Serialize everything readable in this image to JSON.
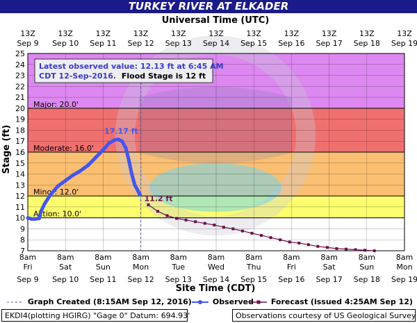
{
  "title": "TURKEY RIVER AT ELKADER",
  "top_axis_title": "Universal Time (UTC)",
  "bottom_axis_title": "Site Time (CDT)",
  "y_axis_title": "Stage (ft)",
  "info_box": {
    "line1": "Latest observed value: 12.13 ft at 6:45 AM",
    "line2_date": "CDT 12-Sep-2016.",
    "line2_flood": "Flood Stage is 12 ft"
  },
  "legend": {
    "graph_created": "Graph Created (8:15AM Sep 12, 2016)",
    "observed": "Observed",
    "forecast": "Forecast (issued 4:25AM Sep 12)"
  },
  "footer": {
    "left": "EKDI4(plotting HGIRG) \"Gage 0\" Datum: 694.93'",
    "right": "Observations courtesy of US Geological Survey"
  },
  "colors": {
    "title_bg": "#1a1a8a",
    "major_band": "#dc88f0",
    "moderate_band": "#f07070",
    "minor_band": "#fbbf72",
    "action_band": "#fdfd6e",
    "observed": "#4455ee",
    "forecast": "#6b0f4a",
    "info_text": "#3a3acc"
  },
  "chart_data": {
    "type": "line",
    "ylim": [
      7,
      25
    ],
    "y_ticks": [
      7,
      8,
      9,
      10,
      11,
      12,
      13,
      14,
      15,
      16,
      17,
      18,
      19,
      20,
      21,
      22,
      23,
      24,
      25
    ],
    "x_days": [
      "Sep 9",
      "Sep 10",
      "Sep 11",
      "Sep 12",
      "Sep 13",
      "Sep 14",
      "Sep 15",
      "Sep 16",
      "Sep 17",
      "Sep 18",
      "Sep 19"
    ],
    "x_top_labels": [
      "13Z",
      "13Z",
      "13Z",
      "13Z",
      "13Z",
      "13Z",
      "13Z",
      "13Z",
      "13Z",
      "13Z",
      "13Z"
    ],
    "x_bottom_hours": [
      "8am",
      "8am",
      "8am",
      "8am",
      "8am",
      "8am",
      "8am",
      "8am",
      "8am",
      "8am",
      "8am"
    ],
    "x_bottom_weekdays": [
      "Fri",
      "Sat",
      "Sun",
      "Mon",
      "Tue",
      "Wed",
      "Thu",
      "Fri",
      "Sat",
      "Sun",
      "Mon"
    ],
    "flood_categories": [
      {
        "name": "Major",
        "label": "Major: 20.0'",
        "from": 20,
        "to": 25
      },
      {
        "name": "Moderate",
        "label": "Moderate: 16.0'",
        "from": 16,
        "to": 20
      },
      {
        "name": "Minor",
        "label": "Minor: 12.0'",
        "from": 12,
        "to": 16
      },
      {
        "name": "Action",
        "label": "Action: 10.0'",
        "from": 10,
        "to": 12
      }
    ],
    "graph_created_day": 3.0,
    "observed": {
      "name": "Observed",
      "peak_label": "17.17 ft",
      "points": [
        [
          0.0,
          10.0
        ],
        [
          0.1,
          9.9
        ],
        [
          0.2,
          9.9
        ],
        [
          0.3,
          9.95
        ],
        [
          0.35,
          10.6
        ],
        [
          0.45,
          11.3
        ],
        [
          0.6,
          12.1
        ],
        [
          0.8,
          12.9
        ],
        [
          1.0,
          13.4
        ],
        [
          1.2,
          13.9
        ],
        [
          1.4,
          14.3
        ],
        [
          1.6,
          14.8
        ],
        [
          1.8,
          15.5
        ],
        [
          2.0,
          16.2
        ],
        [
          2.15,
          16.8
        ],
        [
          2.3,
          17.1
        ],
        [
          2.4,
          17.17
        ],
        [
          2.5,
          17.0
        ],
        [
          2.6,
          16.4
        ],
        [
          2.68,
          15.3
        ],
        [
          2.76,
          14.0
        ],
        [
          2.84,
          13.0
        ],
        [
          2.92,
          12.5
        ],
        [
          2.96,
          12.2
        ],
        [
          2.98,
          12.13
        ]
      ]
    },
    "forecast": {
      "name": "Forecast",
      "first_label": "11.2 ft",
      "points": [
        [
          3.2,
          11.2
        ],
        [
          3.45,
          10.6
        ],
        [
          3.7,
          10.2
        ],
        [
          3.95,
          9.95
        ],
        [
          4.2,
          9.8
        ],
        [
          4.45,
          9.65
        ],
        [
          4.7,
          9.5
        ],
        [
          4.95,
          9.35
        ],
        [
          5.2,
          9.15
        ],
        [
          5.45,
          9.0
        ],
        [
          5.7,
          8.8
        ],
        [
          5.95,
          8.6
        ],
        [
          6.2,
          8.4
        ],
        [
          6.45,
          8.2
        ],
        [
          6.7,
          8.0
        ],
        [
          6.95,
          7.8
        ],
        [
          7.2,
          7.7
        ],
        [
          7.45,
          7.55
        ],
        [
          7.7,
          7.4
        ],
        [
          7.95,
          7.3
        ],
        [
          8.2,
          7.2
        ],
        [
          8.45,
          7.15
        ],
        [
          8.7,
          7.1
        ],
        [
          8.95,
          7.05
        ],
        [
          9.2,
          7.0
        ]
      ]
    }
  }
}
